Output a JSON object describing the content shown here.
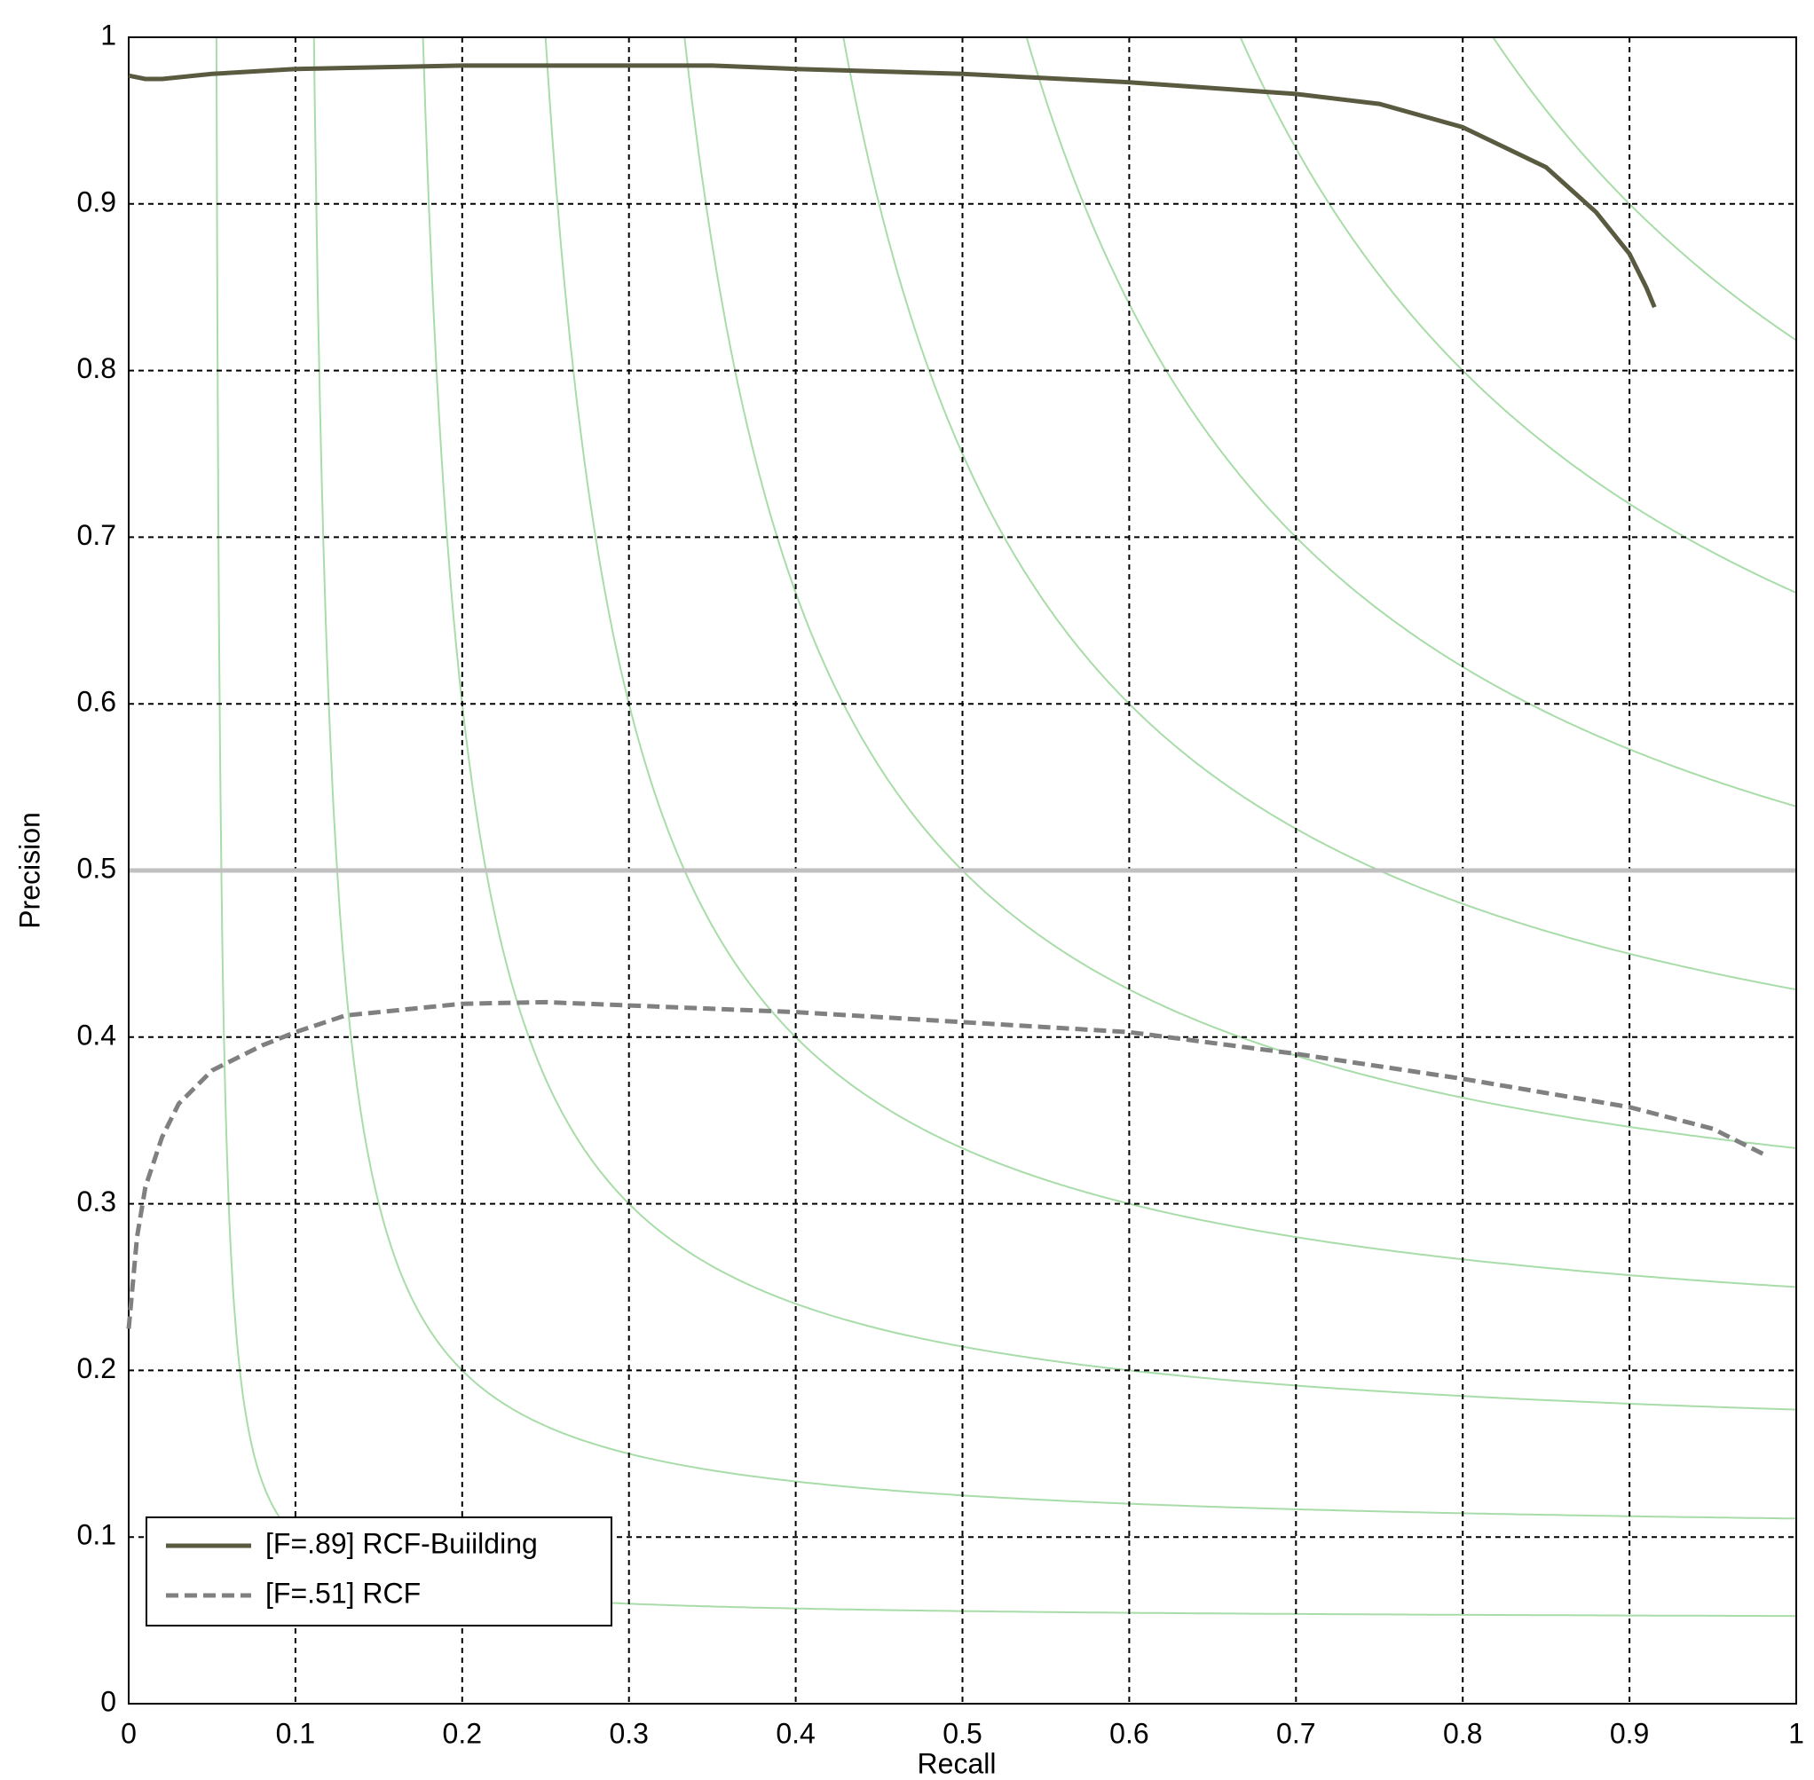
{
  "chart_data": {
    "type": "line",
    "x_label": "Recall",
    "y_label": "Precision",
    "xlim": [
      0,
      1
    ],
    "ylim": [
      0,
      1
    ],
    "xticks": [
      0,
      0.1,
      0.2,
      0.3,
      0.4,
      0.5,
      0.6,
      0.7,
      0.8,
      0.9,
      1
    ],
    "yticks": [
      0,
      0.1,
      0.2,
      0.3,
      0.4,
      0.5,
      0.6,
      0.7,
      0.8,
      0.9,
      1
    ],
    "grid": true,
    "legend": "lower-left",
    "iso_f": [
      0.1,
      0.2,
      0.3,
      0.4,
      0.5,
      0.6,
      0.7,
      0.8,
      0.9
    ],
    "iso_color": "#a8dca8",
    "hline": 0.5,
    "hline_color": "#c0c0c0",
    "series": [
      {
        "name": "[F=.89] RCF-Buiilding",
        "color": "#5a5a40",
        "dash": false,
        "x": [
          0,
          0.01,
          0.02,
          0.05,
          0.1,
          0.2,
          0.3,
          0.35,
          0.4,
          0.5,
          0.6,
          0.7,
          0.75,
          0.8,
          0.85,
          0.88,
          0.9,
          0.91,
          0.915
        ],
        "values": [
          0.977,
          0.975,
          0.975,
          0.978,
          0.981,
          0.983,
          0.983,
          0.983,
          0.981,
          0.978,
          0.973,
          0.966,
          0.96,
          0.946,
          0.922,
          0.895,
          0.87,
          0.85,
          0.838
        ]
      },
      {
        "name": "[F=.51] RCF",
        "color": "#808080",
        "dash": true,
        "x": [
          0,
          0.005,
          0.01,
          0.02,
          0.03,
          0.05,
          0.08,
          0.1,
          0.13,
          0.2,
          0.25,
          0.3,
          0.4,
          0.5,
          0.6,
          0.7,
          0.8,
          0.9,
          0.95,
          0.98
        ],
        "values": [
          0.225,
          0.28,
          0.31,
          0.34,
          0.36,
          0.38,
          0.395,
          0.403,
          0.413,
          0.42,
          0.421,
          0.419,
          0.415,
          0.409,
          0.403,
          0.39,
          0.375,
          0.358,
          0.345,
          0.33
        ]
      }
    ]
  }
}
